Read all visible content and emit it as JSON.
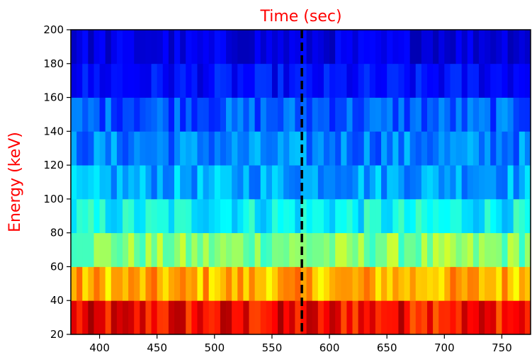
{
  "chart_data": {
    "type": "heatmap",
    "title": "Time (sec)",
    "xlabel": "",
    "ylabel": "Energy (keV)",
    "label_color": "#ff0000",
    "colormap": "jet",
    "xlim": [
      375,
      775
    ],
    "ylim": [
      20,
      200
    ],
    "x_ticks": [
      400,
      450,
      500,
      550,
      600,
      650,
      700,
      750
    ],
    "y_ticks": [
      20,
      40,
      60,
      80,
      100,
      120,
      140,
      160,
      180,
      200
    ],
    "energy_bins": [
      [
        20,
        40
      ],
      [
        40,
        60
      ],
      [
        60,
        80
      ],
      [
        80,
        100
      ],
      [
        100,
        120
      ],
      [
        120,
        140
      ],
      [
        140,
        160
      ],
      [
        160,
        180
      ],
      [
        180,
        200
      ]
    ],
    "time_bin_width_sec": 5,
    "marker": {
      "type": "vertical-dashed-line",
      "x": 576,
      "color": "#000000"
    },
    "band_value_ranges": [
      [
        0.78,
        0.97
      ],
      [
        0.62,
        0.78
      ],
      [
        0.42,
        0.58
      ],
      [
        0.3,
        0.45
      ],
      [
        0.22,
        0.36
      ],
      [
        0.18,
        0.32
      ],
      [
        0.15,
        0.28
      ],
      [
        0.08,
        0.18
      ],
      [
        0.05,
        0.14
      ]
    ],
    "grid": false
  }
}
